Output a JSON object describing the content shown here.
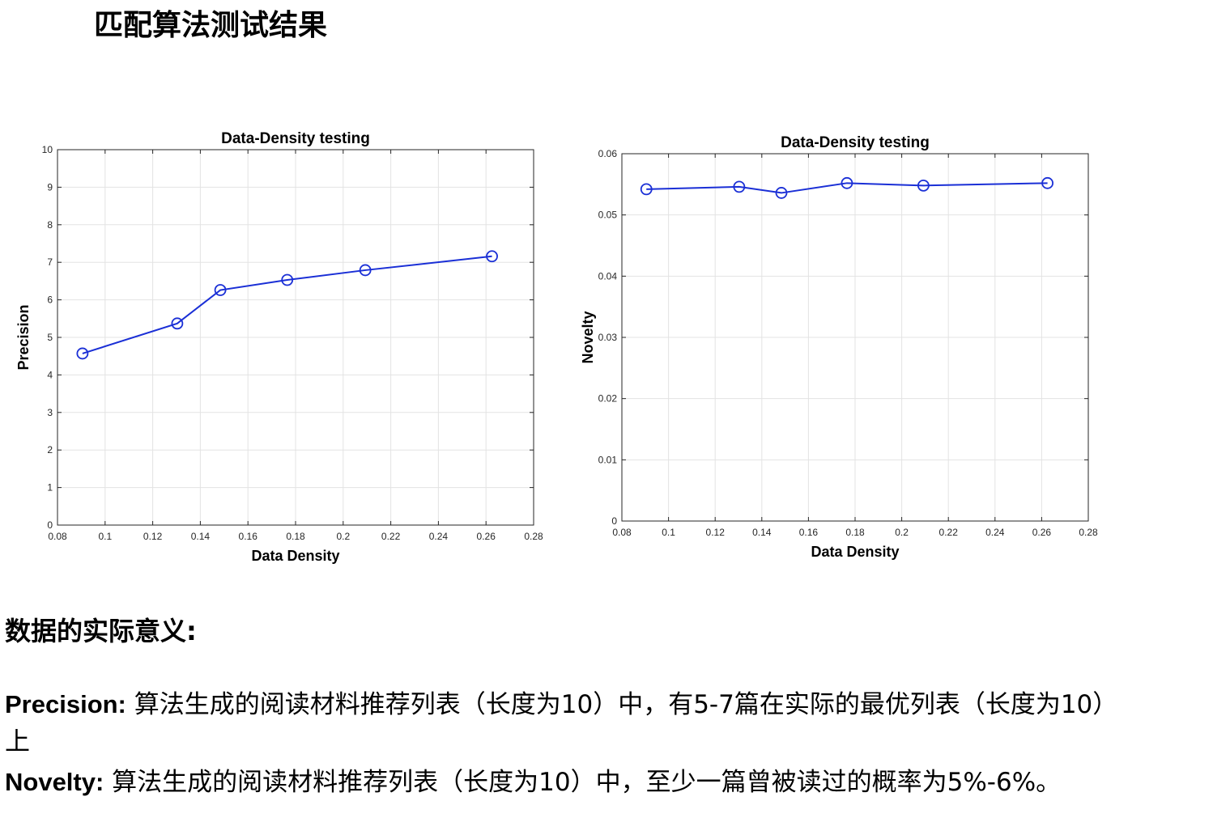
{
  "page": {
    "title": "匹配算法测试结果",
    "section_heading": "数据的实际意义:"
  },
  "explanations": {
    "precision_term": "Precision:",
    "precision_text": " 算法生成的阅读材料推荐列表（长度为10）中，有5-7篇在实际的最优列表（长度为10）",
    "precision_wrap": "上",
    "novelty_term": "Novelty:",
    "novelty_text": " 算法生成的阅读材料推荐列表（长度为10）中，至少一篇曾被读过的概率为5%-6%。"
  },
  "chart_data": [
    {
      "type": "line",
      "title": "Data-Density testing",
      "xlabel": "Data Density",
      "ylabel": "Precision",
      "xlim": [
        0.08,
        0.28
      ],
      "ylim": [
        0,
        10
      ],
      "xticks": [
        0.08,
        0.1,
        0.12,
        0.14,
        0.16,
        0.18,
        0.2,
        0.22,
        0.24,
        0.26,
        0.28
      ],
      "xtick_labels": [
        "0.08",
        "0.1",
        "0.12",
        "0.14",
        "0.16",
        "0.18",
        "0.2",
        "0.22",
        "0.24",
        "0.26",
        "0.28"
      ],
      "yticks": [
        0,
        1,
        2,
        3,
        4,
        5,
        6,
        7,
        8,
        9,
        10
      ],
      "ytick_labels": [
        "0",
        "1",
        "2",
        "3",
        "4",
        "5",
        "6",
        "7",
        "8",
        "9",
        "10"
      ],
      "grid": true,
      "marker": "circle",
      "color": "#1a2fd6",
      "x": [
        0.0905,
        0.1303,
        0.1484,
        0.1765,
        0.2093,
        0.2625
      ],
      "y": [
        4.57,
        5.37,
        6.26,
        6.53,
        6.79,
        7.16
      ]
    },
    {
      "type": "line",
      "title": "Data-Density testing",
      "xlabel": "Data Density",
      "ylabel": "Novelty",
      "xlim": [
        0.08,
        0.28
      ],
      "ylim": [
        0,
        0.06
      ],
      "xticks": [
        0.08,
        0.1,
        0.12,
        0.14,
        0.16,
        0.18,
        0.2,
        0.22,
        0.24,
        0.26,
        0.28
      ],
      "xtick_labels": [
        "0.08",
        "0.1",
        "0.12",
        "0.14",
        "0.16",
        "0.18",
        "0.2",
        "0.22",
        "0.24",
        "0.26",
        "0.28"
      ],
      "yticks": [
        0,
        0.01,
        0.02,
        0.03,
        0.04,
        0.05,
        0.06
      ],
      "ytick_labels": [
        "0",
        "0.01",
        "0.02",
        "0.03",
        "0.04",
        "0.05",
        "0.06"
      ],
      "grid": true,
      "marker": "circle",
      "color": "#1a2fd6",
      "x": [
        0.0905,
        0.1303,
        0.1484,
        0.1765,
        0.2093,
        0.2625
      ],
      "y": [
        0.0542,
        0.0546,
        0.0536,
        0.0552,
        0.0548,
        0.0552
      ]
    }
  ]
}
